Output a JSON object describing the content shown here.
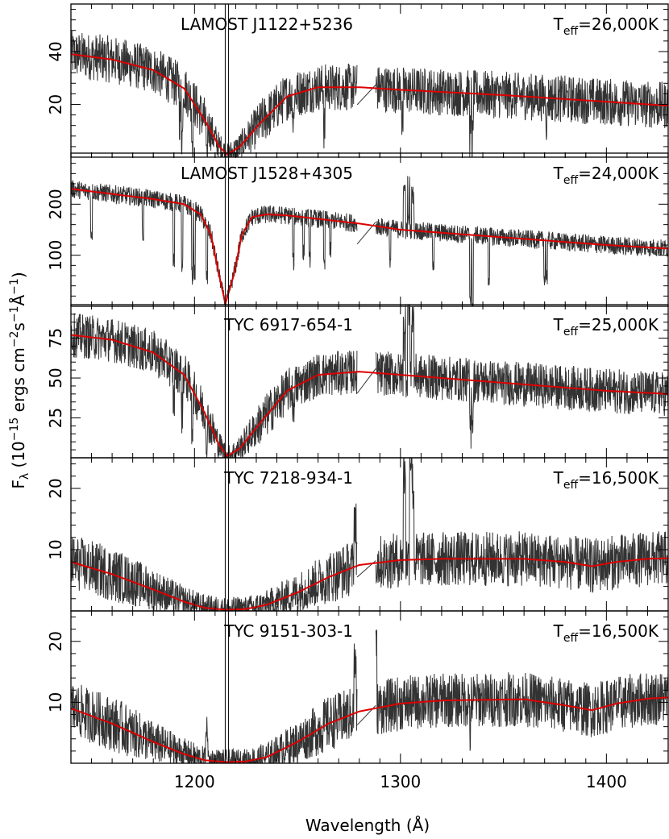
{
  "chart_data": {
    "type": "line",
    "x_label": {
      "main": "Wavelength (",
      "unit": "Å",
      "close": ")"
    },
    "y_label": {
      "f": "F",
      "f_sub": "λ",
      "pre": " (10",
      "exp1": "−15",
      "mid1": " ergs cm",
      "exp2": "−2",
      "mid2": "s",
      "exp3": "−1",
      "mid3": "Å",
      "exp4": "−1",
      "post": ")"
    },
    "xlim": [
      1140,
      1430
    ],
    "x_ticks": [
      1200,
      1300,
      1400
    ],
    "x_tick_labels": [
      "1200",
      "1300",
      "1400"
    ],
    "lyman_alpha_marker": 1215.7,
    "gap": [
      1279,
      1288
    ],
    "series_colors": {
      "observed": "#333333",
      "model": "#dd0000"
    },
    "panels": [
      {
        "star": "LAMOST J1122+5236",
        "teff_label": "T",
        "teff_sub": "eff",
        "teff_value": "=26,000K",
        "ylim": [
          0,
          58
        ],
        "y_ticks": [
          20,
          40
        ],
        "y_tick_labels": [
          "20",
          "40"
        ],
        "model": {
          "x": [
            1140,
            1160,
            1180,
            1195,
            1205,
            1212,
            1216,
            1222,
            1232,
            1245,
            1260,
            1280,
            1300,
            1350,
            1400,
            1430
          ],
          "y": [
            39,
            37,
            33,
            26,
            14,
            4,
            1,
            4,
            13,
            23,
            26.5,
            26.5,
            25.5,
            23.5,
            21,
            19.5
          ]
        },
        "noise": 9,
        "absorption": [
          [
            1194,
            18
          ],
          [
            1199,
            14
          ],
          [
            1206,
            16
          ],
          [
            1248,
            10
          ],
          [
            1263,
            15
          ],
          [
            1301,
            12
          ],
          [
            1334,
            16
          ],
          [
            1335,
            18
          ],
          [
            1371,
            8
          ],
          [
            1193,
            12
          ]
        ],
        "emission": []
      },
      {
        "star": "LAMOST J1528+4305",
        "teff_label": "T",
        "teff_sub": "eff",
        "teff_value": "=24,000K",
        "ylim": [
          0,
          300
        ],
        "y_ticks": [
          100,
          200
        ],
        "y_tick_labels": [
          "100",
          "200"
        ],
        "model": {
          "x": [
            1140,
            1160,
            1180,
            1195,
            1203,
            1208,
            1212,
            1215,
            1219,
            1223,
            1228,
            1235,
            1245,
            1280,
            1300,
            1350,
            1400,
            1430
          ],
          "y": [
            230,
            220,
            210,
            200,
            180,
            140,
            60,
            5,
            60,
            140,
            175,
            180,
            178,
            162,
            150,
            135,
            120,
            113
          ]
        },
        "noise": 18,
        "absorption": [
          [
            1150,
            80
          ],
          [
            1175,
            70
          ],
          [
            1190,
            110
          ],
          [
            1194,
            120
          ],
          [
            1199,
            130
          ],
          [
            1200,
            120
          ],
          [
            1206,
            100
          ],
          [
            1248,
            90
          ],
          [
            1253,
            70
          ],
          [
            1256,
            80
          ],
          [
            1263,
            90
          ],
          [
            1266,
            60
          ],
          [
            1281,
            60
          ],
          [
            1295,
            60
          ],
          [
            1304,
            70
          ],
          [
            1316,
            60
          ],
          [
            1334,
            120
          ],
          [
            1335,
            150
          ],
          [
            1343,
            80
          ],
          [
            1370,
            70
          ],
          [
            1371,
            70
          ]
        ],
        "emission": [
          [
            1302,
            80
          ],
          [
            1304,
            90
          ],
          [
            1306,
            70
          ]
        ]
      },
      {
        "star": "TYC 6917-654-1",
        "teff_label": "T",
        "teff_sub": "eff",
        "teff_value": "=25,000K",
        "ylim": [
          0,
          96
        ],
        "y_ticks": [
          25,
          50,
          75
        ],
        "y_tick_labels": [
          "25",
          "50",
          "75"
        ],
        "model": {
          "x": [
            1140,
            1160,
            1180,
            1195,
            1205,
            1212,
            1216,
            1222,
            1232,
            1245,
            1260,
            1280,
            1300,
            1350,
            1400,
            1430
          ],
          "y": [
            77,
            74,
            66,
            52,
            28,
            8,
            1,
            6,
            22,
            42,
            52,
            54,
            52,
            47,
            42,
            40
          ]
        },
        "noise": 14,
        "absorption": [
          [
            1190,
            20
          ],
          [
            1194,
            25
          ],
          [
            1199,
            22
          ],
          [
            1206,
            18
          ],
          [
            1248,
            15
          ],
          [
            1302,
            20
          ],
          [
            1334,
            30
          ],
          [
            1335,
            25
          ]
        ],
        "emission": [
          [
            1302,
            40
          ],
          [
            1304,
            45
          ],
          [
            1306,
            38
          ]
        ]
      },
      {
        "star": "TYC 7218-934-1",
        "teff_label": "T",
        "teff_sub": "eff",
        "teff_value": "=16,500K",
        "ylim": [
          0,
          25
        ],
        "y_ticks": [
          10,
          20
        ],
        "y_tick_labels": [
          "10",
          "20"
        ],
        "model": {
          "x": [
            1140,
            1160,
            1180,
            1195,
            1205,
            1215,
            1225,
            1235,
            1250,
            1265,
            1280,
            1300,
            1320,
            1360,
            1380,
            1393,
            1405,
            1420,
            1430
          ],
          "y": [
            8,
            6,
            3.5,
            1.5,
            0.5,
            0.2,
            0.3,
            1,
            3,
            5.5,
            7.5,
            8.3,
            8.5,
            8.5,
            8,
            7.3,
            8,
            8.5,
            8.6
          ]
        },
        "noise": 4.5,
        "absorption": [],
        "emission": [
          [
            1278,
            8
          ],
          [
            1302,
            14
          ],
          [
            1305,
            17
          ],
          [
            1306,
            12
          ]
        ]
      },
      {
        "star": "TYC 9151-303-1",
        "teff_label": "T",
        "teff_sub": "eff",
        "teff_value": "=16,500K",
        "ylim": [
          0,
          25
        ],
        "y_ticks": [
          10,
          20
        ],
        "y_tick_labels": [
          "10",
          "20"
        ],
        "model": {
          "x": [
            1140,
            1160,
            1180,
            1195,
            1205,
            1215,
            1225,
            1235,
            1250,
            1265,
            1280,
            1300,
            1320,
            1360,
            1380,
            1393,
            1405,
            1420,
            1430
          ],
          "y": [
            9,
            6.5,
            3.5,
            1.5,
            0.5,
            0.2,
            0.3,
            1,
            3.5,
            6.5,
            8.5,
            9.8,
            10.3,
            10.5,
            9.5,
            8.7,
            9.8,
            10.6,
            10.8
          ]
        },
        "noise": 4.5,
        "absorption": [
          [
            1334,
            5
          ]
        ],
        "emission": [
          [
            1206,
            5
          ],
          [
            1278,
            8
          ],
          [
            1288,
            9
          ]
        ]
      }
    ]
  }
}
